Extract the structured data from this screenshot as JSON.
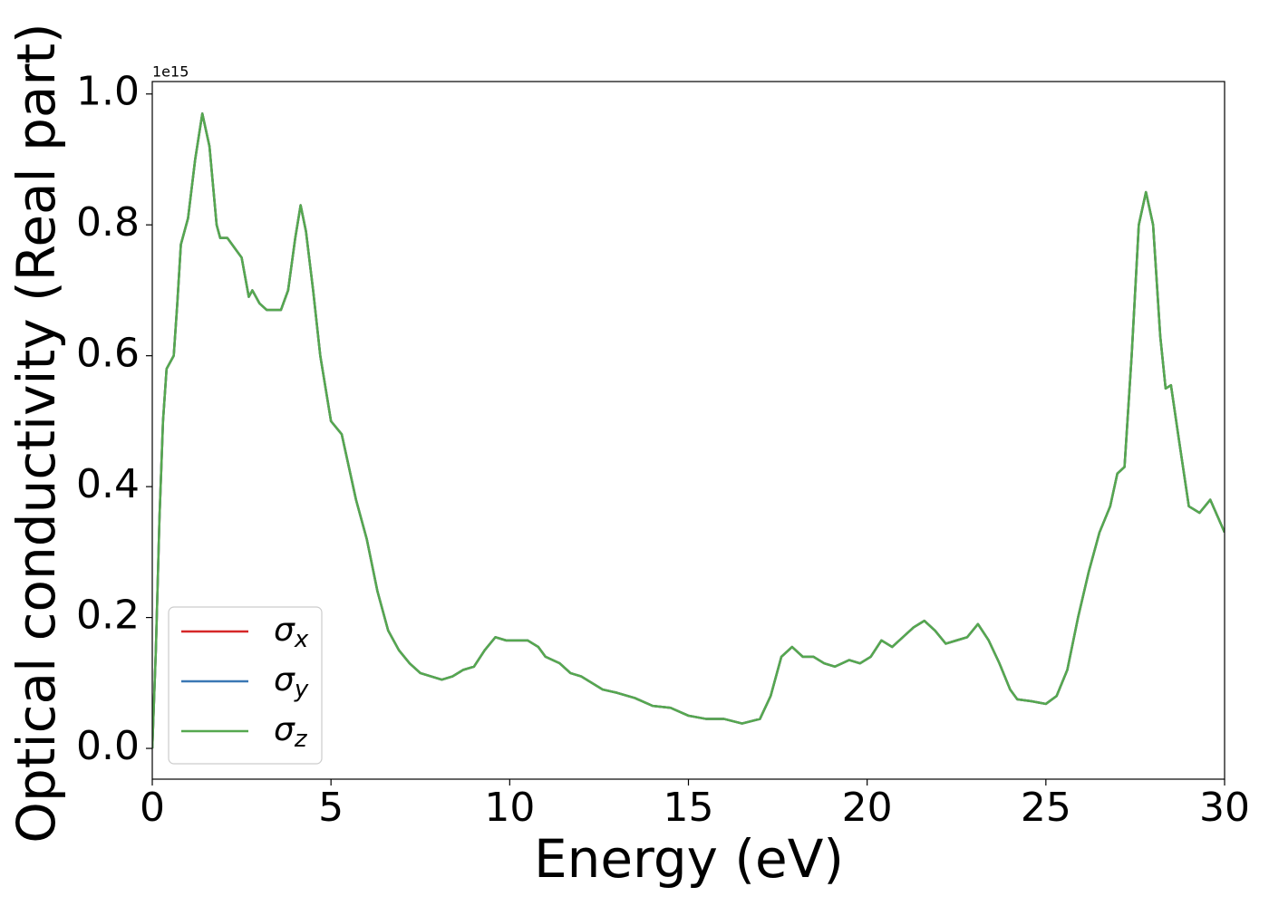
{
  "chart_data": {
    "type": "line",
    "xlabel": "Energy (eV)",
    "ylabel": "Optical conductivity (Real part)",
    "y_offset_label": "1e15",
    "x": [
      0,
      0.1,
      0.2,
      0.3,
      0.4,
      0.5,
      0.6,
      0.7,
      0.8,
      1.0,
      1.2,
      1.4,
      1.6,
      1.8,
      1.9,
      2.1,
      2.3,
      2.5,
      2.6,
      2.7,
      2.8,
      3.0,
      3.2,
      3.6,
      3.8,
      4.0,
      4.15,
      4.3,
      4.5,
      4.7,
      5.0,
      5.3,
      5.5,
      5.7,
      6.0,
      6.3,
      6.6,
      6.9,
      7.2,
      7.5,
      7.8,
      8.1,
      8.4,
      8.7,
      9.0,
      9.3,
      9.6,
      9.9,
      10.2,
      10.5,
      10.8,
      11.0,
      11.4,
      11.7,
      12.0,
      12.3,
      12.6,
      13.0,
      13.5,
      14.0,
      14.5,
      15.0,
      15.5,
      16.0,
      16.5,
      17.0,
      17.3,
      17.6,
      17.9,
      18.2,
      18.5,
      18.8,
      19.1,
      19.5,
      19.8,
      20.1,
      20.4,
      20.7,
      21.0,
      21.3,
      21.6,
      21.9,
      22.2,
      22.5,
      22.8,
      23.1,
      23.4,
      23.7,
      24.0,
      24.2,
      24.6,
      25.0,
      25.3,
      25.6,
      25.9,
      26.2,
      26.5,
      26.8,
      27.0,
      27.2,
      27.4,
      27.6,
      27.8,
      28.0,
      28.2,
      28.35,
      28.5,
      28.7,
      29.0,
      29.3,
      29.6,
      30.0
    ],
    "series": [
      {
        "name": "σx",
        "color": "#d62728",
        "values": [
          0.0,
          0.15,
          0.35,
          0.5,
          0.58,
          0.59,
          0.6,
          0.68,
          0.77,
          0.81,
          0.9,
          0.97,
          0.92,
          0.8,
          0.78,
          0.78,
          0.765,
          0.75,
          0.72,
          0.69,
          0.7,
          0.68,
          0.67,
          0.67,
          0.7,
          0.78,
          0.83,
          0.79,
          0.7,
          0.6,
          0.5,
          0.48,
          0.43,
          0.38,
          0.32,
          0.24,
          0.18,
          0.15,
          0.13,
          0.115,
          0.11,
          0.105,
          0.11,
          0.12,
          0.125,
          0.15,
          0.17,
          0.165,
          0.165,
          0.165,
          0.155,
          0.14,
          0.13,
          0.115,
          0.11,
          0.1,
          0.09,
          0.085,
          0.077,
          0.065,
          0.062,
          0.05,
          0.045,
          0.045,
          0.038,
          0.045,
          0.08,
          0.14,
          0.155,
          0.14,
          0.14,
          0.13,
          0.125,
          0.135,
          0.13,
          0.14,
          0.165,
          0.155,
          0.17,
          0.185,
          0.195,
          0.18,
          0.16,
          0.165,
          0.17,
          0.19,
          0.165,
          0.13,
          0.09,
          0.075,
          0.072,
          0.068,
          0.08,
          0.12,
          0.2,
          0.27,
          0.33,
          0.37,
          0.42,
          0.43,
          0.6,
          0.8,
          0.85,
          0.8,
          0.63,
          0.55,
          0.555,
          0.48,
          0.37,
          0.36,
          0.38,
          0.33
        ]
      },
      {
        "name": "σy",
        "color": "#3a78b4",
        "values": [
          0.0,
          0.15,
          0.35,
          0.5,
          0.58,
          0.59,
          0.6,
          0.68,
          0.77,
          0.81,
          0.9,
          0.97,
          0.92,
          0.8,
          0.78,
          0.78,
          0.765,
          0.75,
          0.72,
          0.69,
          0.7,
          0.68,
          0.67,
          0.67,
          0.7,
          0.78,
          0.83,
          0.79,
          0.7,
          0.6,
          0.5,
          0.48,
          0.43,
          0.38,
          0.32,
          0.24,
          0.18,
          0.15,
          0.13,
          0.115,
          0.11,
          0.105,
          0.11,
          0.12,
          0.125,
          0.15,
          0.17,
          0.165,
          0.165,
          0.165,
          0.155,
          0.14,
          0.13,
          0.115,
          0.11,
          0.1,
          0.09,
          0.085,
          0.077,
          0.065,
          0.062,
          0.05,
          0.045,
          0.045,
          0.038,
          0.045,
          0.08,
          0.14,
          0.155,
          0.14,
          0.14,
          0.13,
          0.125,
          0.135,
          0.13,
          0.14,
          0.165,
          0.155,
          0.17,
          0.185,
          0.195,
          0.18,
          0.16,
          0.165,
          0.17,
          0.19,
          0.165,
          0.13,
          0.09,
          0.075,
          0.072,
          0.068,
          0.08,
          0.12,
          0.2,
          0.27,
          0.33,
          0.37,
          0.42,
          0.43,
          0.6,
          0.8,
          0.85,
          0.8,
          0.63,
          0.55,
          0.555,
          0.48,
          0.37,
          0.36,
          0.38,
          0.33
        ]
      },
      {
        "name": "σz",
        "color": "#55a84f",
        "values": [
          0.0,
          0.15,
          0.35,
          0.5,
          0.58,
          0.59,
          0.6,
          0.68,
          0.77,
          0.81,
          0.9,
          0.97,
          0.92,
          0.8,
          0.78,
          0.78,
          0.765,
          0.75,
          0.72,
          0.69,
          0.7,
          0.68,
          0.67,
          0.67,
          0.7,
          0.78,
          0.83,
          0.79,
          0.7,
          0.6,
          0.5,
          0.48,
          0.43,
          0.38,
          0.32,
          0.24,
          0.18,
          0.15,
          0.13,
          0.115,
          0.11,
          0.105,
          0.11,
          0.12,
          0.125,
          0.15,
          0.17,
          0.165,
          0.165,
          0.165,
          0.155,
          0.14,
          0.13,
          0.115,
          0.11,
          0.1,
          0.09,
          0.085,
          0.077,
          0.065,
          0.062,
          0.05,
          0.045,
          0.045,
          0.038,
          0.045,
          0.08,
          0.14,
          0.155,
          0.14,
          0.14,
          0.13,
          0.125,
          0.135,
          0.13,
          0.14,
          0.165,
          0.155,
          0.17,
          0.185,
          0.195,
          0.18,
          0.16,
          0.165,
          0.17,
          0.19,
          0.165,
          0.13,
          0.09,
          0.075,
          0.072,
          0.068,
          0.08,
          0.12,
          0.2,
          0.27,
          0.33,
          0.37,
          0.42,
          0.43,
          0.6,
          0.8,
          0.85,
          0.8,
          0.63,
          0.55,
          0.555,
          0.48,
          0.37,
          0.36,
          0.38,
          0.33
        ]
      }
    ],
    "xlim": [
      0,
      30
    ],
    "xticks": [
      0,
      5,
      10,
      15,
      20,
      25,
      30
    ],
    "ylim": [
      -0.047,
      1.019
    ],
    "yticks": [
      {
        "value": 0,
        "label": "0.0"
      },
      {
        "value": 0.2,
        "label": "0.2"
      },
      {
        "value": 0.4,
        "label": "0.4"
      },
      {
        "value": 0.6,
        "label": "0.6"
      },
      {
        "value": 0.8,
        "label": "0.8"
      },
      {
        "value": 1.0,
        "label": "1.0"
      }
    ],
    "legend": "lower left",
    "grid": false
  }
}
